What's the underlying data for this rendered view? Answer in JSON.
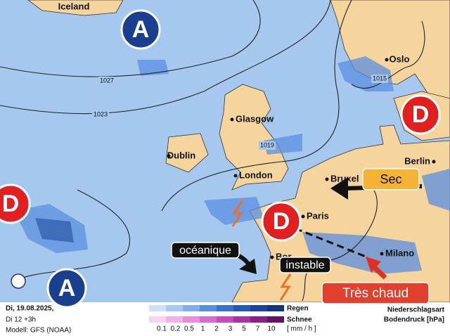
{
  "map": {
    "places": [
      "Iceland",
      "Oslo",
      "Glasgow",
      "Dublin",
      "Berlin",
      "London",
      "Bruxel",
      "Paris",
      "Milano",
      "Bor"
    ],
    "isobars": [
      "1027",
      "1023",
      "1019",
      "1015"
    ],
    "pressure_centers": [
      "A",
      "A",
      "D",
      "D",
      "D"
    ],
    "annotations": [
      "Sec",
      "océanique",
      "instable",
      "Très chaud"
    ]
  },
  "footer": {
    "date": "Di, 19.08.2025,",
    "run": "Di 12 +3h",
    "model": "Modell: GFS (NOAA)",
    "rain": "Regen",
    "snow": "Schnee",
    "unit": "[ mm / h ]",
    "scale": [
      0.1,
      0.2,
      0.5,
      1,
      2,
      3,
      5,
      7,
      10
    ],
    "type_label": "Niederschlagsart",
    "pressure_label": "Bodendruck [hPa]"
  }
}
